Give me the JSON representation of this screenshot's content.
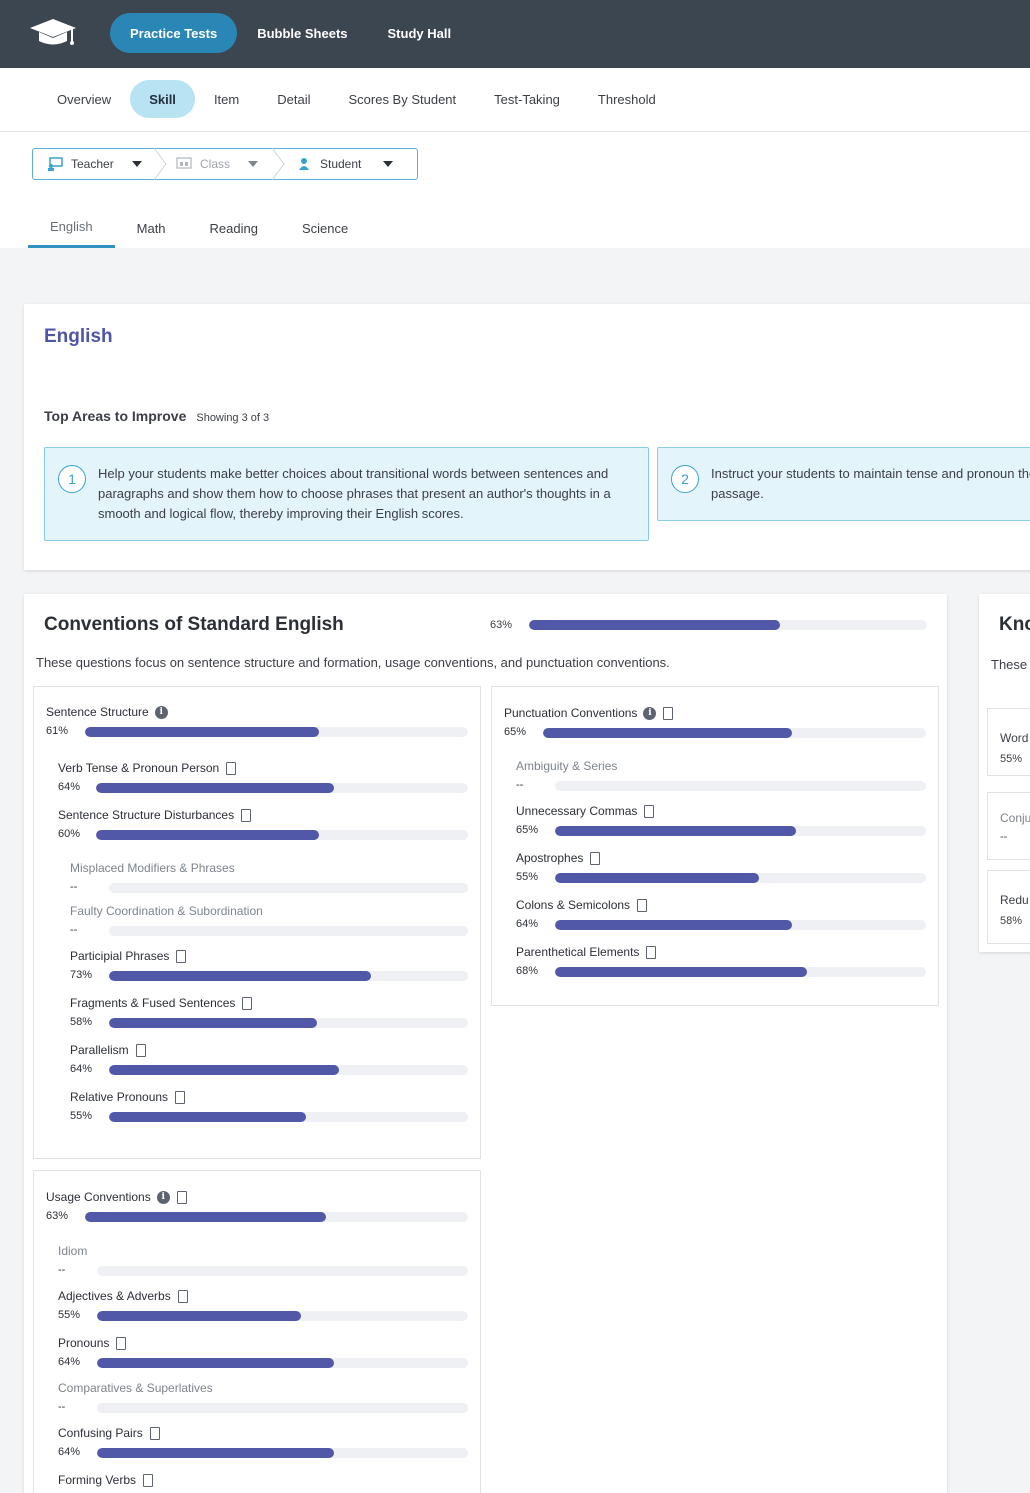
{
  "header": {
    "logo": "graduation-cap-icon",
    "nav": [
      "Practice Tests",
      "Bubble Sheets",
      "Study Hall"
    ],
    "active_nav": "Practice Tests"
  },
  "subnav": {
    "tabs": [
      "Overview",
      "Skill",
      "Item",
      "Detail",
      "Scores By Student",
      "Test-Taking",
      "Threshold"
    ],
    "active": "Skill"
  },
  "filters": {
    "teacher": "Teacher",
    "class": "Class",
    "student": "Student"
  },
  "subject_tabs": [
    "English",
    "Math",
    "Reading",
    "Science"
  ],
  "active_subject": "English",
  "english": {
    "title": "English",
    "improve_heading": "Top Areas to Improve",
    "improve_count": "Showing 3 of 3",
    "tips": [
      {
        "num": "1",
        "text": "Help your students make better choices about transitional words between sentences and paragraphs and show them how to choose phrases that present an author's thoughts in a smooth and logical flow, thereby improving their English scores."
      },
      {
        "num": "2",
        "text": "Instruct your students to maintain tense and pronoun the passage."
      }
    ]
  },
  "conventions": {
    "title": "Conventions of Standard English",
    "pct": "63%",
    "value": 0.63,
    "desc": "These questions focus on sentence structure and formation, usage conventions, and punctuation conventions.",
    "sentence_structure": {
      "label": "Sentence Structure",
      "pct": "61%",
      "value": 0.61,
      "items": [
        {
          "label": "Verb Tense & Pronoun Person",
          "pct": "64%",
          "value": 0.64
        },
        {
          "label": "Sentence Structure Disturbances",
          "pct": "60%",
          "value": 0.6
        },
        {
          "label": "Misplaced Modifiers & Phrases",
          "pct": "--",
          "value": 0
        },
        {
          "label": "Faulty Coordination & Subordination",
          "pct": "--",
          "value": 0
        },
        {
          "label": "Participial Phrases",
          "pct": "73%",
          "value": 0.73
        },
        {
          "label": "Fragments & Fused Sentences",
          "pct": "58%",
          "value": 0.58
        },
        {
          "label": "Parallelism",
          "pct": "64%",
          "value": 0.64
        },
        {
          "label": "Relative Pronouns",
          "pct": "55%",
          "value": 0.55
        }
      ]
    },
    "punctuation": {
      "label": "Punctuation Conventions",
      "pct": "65%",
      "value": 0.65,
      "items": [
        {
          "label": "Ambiguity & Series",
          "pct": "--",
          "value": 0
        },
        {
          "label": "Unnecessary Commas",
          "pct": "65%",
          "value": 0.65
        },
        {
          "label": "Apostrophes",
          "pct": "55%",
          "value": 0.55
        },
        {
          "label": "Colons & Semicolons",
          "pct": "64%",
          "value": 0.64
        },
        {
          "label": "Parenthetical Elements",
          "pct": "68%",
          "value": 0.68
        }
      ]
    },
    "usage": {
      "label": "Usage Conventions",
      "pct": "63%",
      "value": 0.63,
      "items": [
        {
          "label": "Idiom",
          "pct": "--",
          "value": 0
        },
        {
          "label": "Adjectives & Adverbs",
          "pct": "55%",
          "value": 0.55
        },
        {
          "label": "Pronouns",
          "pct": "64%",
          "value": 0.64
        },
        {
          "label": "Comparatives & Superlatives",
          "pct": "--",
          "value": 0
        },
        {
          "label": "Confusing Pairs",
          "pct": "64%",
          "value": 0.64
        },
        {
          "label": "Forming Verbs",
          "pct": "",
          "value": 0
        }
      ]
    }
  },
  "knowledge": {
    "title": "Knc",
    "desc": "These need fc",
    "items": [
      {
        "label": "Word",
        "pct": "55%"
      },
      {
        "label": "Conju",
        "pct": "--"
      },
      {
        "label": "Redu",
        "pct": "58%"
      }
    ]
  },
  "colors": {
    "header": "#3c4650",
    "accent": "#2a86b5",
    "bar": "#5158a8",
    "bar_track": "#eef0f3",
    "tip_bg": "#e3f4fb"
  }
}
